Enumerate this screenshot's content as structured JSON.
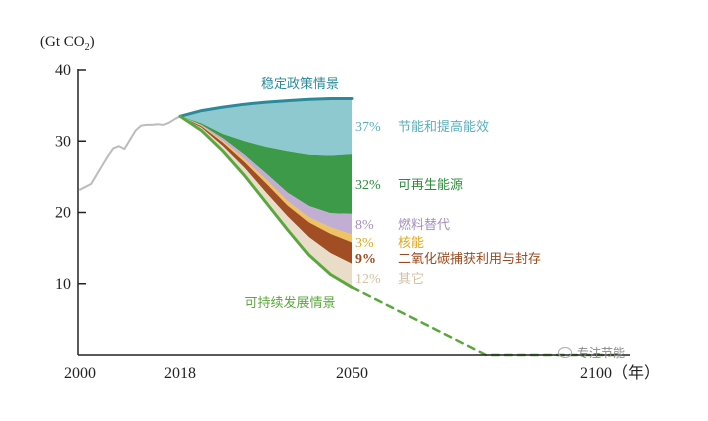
{
  "chart_data": {
    "type": "area",
    "title": "",
    "ylabel_prefix": "(Gt CO",
    "ylabel_sub": "2",
    "ylabel_suffix": ")",
    "xlabel": "",
    "ylim": [
      0,
      40
    ],
    "yticks": [
      10,
      20,
      30,
      40
    ],
    "xticks": [
      {
        "value": 2000,
        "label": "2000"
      },
      {
        "value": 2018,
        "label": "2018"
      },
      {
        "value": 2050,
        "label": "2050"
      },
      {
        "value": 2100,
        "label": "2100（年）"
      }
    ],
    "historical": {
      "x": [
        2000,
        2001,
        2002,
        2003,
        2004,
        2005,
        2006,
        2007,
        2008,
        2009,
        2010,
        2011,
        2012,
        2013,
        2014,
        2015,
        2016,
        2017,
        2018
      ],
      "y": [
        23.2,
        23.6,
        24.0,
        25.3,
        26.6,
        27.9,
        29.0,
        29.3,
        28.9,
        30.2,
        31.5,
        32.2,
        32.3,
        32.3,
        32.4,
        32.3,
        32.6,
        33.1,
        33.5
      ],
      "color": "#bcbcbc"
    },
    "stated_policies": {
      "name": "稳定政策情景",
      "x": [
        2018,
        2022,
        2026,
        2030,
        2034,
        2038,
        2042,
        2046,
        2050
      ],
      "y": [
        33.5,
        34.3,
        34.8,
        35.2,
        35.5,
        35.7,
        35.9,
        36.0,
        36.0
      ],
      "color": "#2b8a9a"
    },
    "sustainable_development": {
      "name": "可持续发展情景",
      "x": [
        2018,
        2022,
        2026,
        2030,
        2034,
        2038,
        2042,
        2046,
        2050
      ],
      "y": [
        33.5,
        31.5,
        28.6,
        25.2,
        21.4,
        17.6,
        14.0,
        11.3,
        9.5
      ],
      "color": "#5aa83c",
      "projection": {
        "x": [
          2050,
          2075,
          2100
        ],
        "y": [
          9.5,
          0,
          0
        ]
      }
    },
    "wedges": [
      {
        "label": "节能和提高能效",
        "share": "37%",
        "color": "#8ec9cf",
        "text_color": "#5aafbb",
        "top": [
          33.5,
          34.3,
          34.8,
          35.2,
          35.5,
          35.7,
          35.9,
          36.0,
          36.0
        ],
        "bottom": [
          33.5,
          32.5,
          31.0,
          30.0,
          29.2,
          28.6,
          28.1,
          28.0,
          28.2
        ]
      },
      {
        "label": "可再生能源",
        "share": "32%",
        "color": "#3c9a48",
        "text_color": "#2e8a3c",
        "top": [
          33.5,
          32.5,
          31.0,
          30.0,
          29.2,
          28.6,
          28.1,
          28.0,
          28.2
        ],
        "bottom": [
          33.5,
          32.3,
          30.4,
          28.1,
          25.5,
          22.8,
          20.9,
          19.9,
          19.8
        ]
      },
      {
        "label": "燃料替代",
        "share": "8%",
        "color": "#c2aed2",
        "text_color": "#a490bc",
        "top": [
          33.5,
          32.3,
          30.4,
          28.1,
          25.5,
          22.8,
          20.9,
          19.9,
          19.8
        ],
        "bottom": [
          33.5,
          32.2,
          30.0,
          27.5,
          24.6,
          21.6,
          19.3,
          17.9,
          16.9
        ]
      },
      {
        "label": "核能",
        "share": "3%",
        "color": "#eec463",
        "text_color": "#e0a820",
        "top": [
          33.5,
          32.2,
          30.0,
          27.5,
          24.6,
          21.6,
          19.3,
          17.9,
          16.9
        ],
        "bottom": [
          33.5,
          32.1,
          29.8,
          27.1,
          24.1,
          21.0,
          18.6,
          17.0,
          15.8
        ]
      },
      {
        "label": "二氧化碳捕获利用与封存",
        "share": "9%",
        "color": "#a24e25",
        "text_color": "#9a4a1e",
        "top": [
          33.5,
          32.1,
          29.8,
          27.1,
          24.1,
          21.0,
          18.6,
          17.0,
          15.8
        ],
        "bottom": [
          33.5,
          31.9,
          29.3,
          26.3,
          22.8,
          19.5,
          16.5,
          14.3,
          12.8
        ]
      },
      {
        "label": "其它",
        "share": "12%",
        "color": "#e9dcc8",
        "text_color": "#d2c1a2",
        "top": [
          33.5,
          31.9,
          29.3,
          26.3,
          22.8,
          19.5,
          16.5,
          14.3,
          12.8
        ],
        "bottom": [
          33.5,
          31.5,
          28.6,
          25.2,
          21.4,
          17.6,
          14.0,
          11.3,
          9.5
        ]
      }
    ]
  },
  "watermark": "专注节能"
}
